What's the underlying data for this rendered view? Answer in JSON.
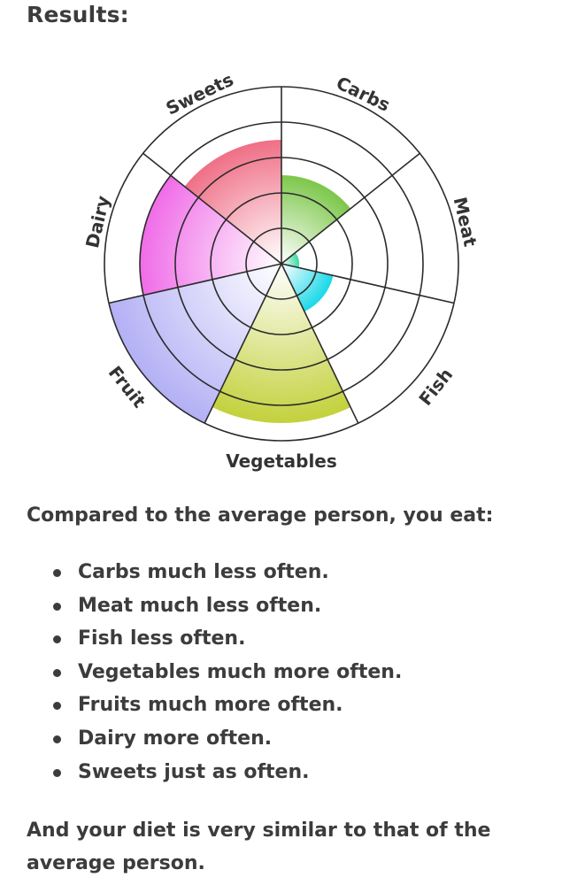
{
  "heading": "Results:",
  "chart_data": {
    "type": "polar-area",
    "categories": [
      "Carbs",
      "Meat",
      "Fish",
      "Vegetables",
      "Fruit",
      "Dairy",
      "Sweets"
    ],
    "values": [
      2.5,
      0.5,
      1.5,
      4.5,
      5.0,
      4.0,
      3.5
    ],
    "rings": 5,
    "colors": [
      "#7cc74a",
      "#3ed9a0",
      "#19d8e8",
      "#c3d13c",
      "#b3b0f5",
      "#f06ce8",
      "#ef6f86"
    ]
  },
  "lead": "Compared to the average person, you eat:",
  "items": [
    "Carbs much less often.",
    "Meat much less often.",
    "Fish less often.",
    "Vegetables much more often.",
    "Fruits much more often.",
    "Dairy more often.",
    "Sweets just as often."
  ],
  "summary": "And your diet is very similar to that of the average person."
}
